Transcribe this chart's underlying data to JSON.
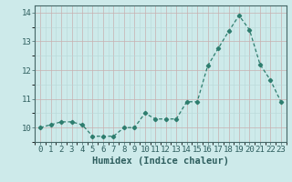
{
  "x": [
    0,
    1,
    2,
    3,
    4,
    5,
    6,
    7,
    8,
    9,
    10,
    11,
    12,
    13,
    14,
    15,
    16,
    17,
    18,
    19,
    20,
    21,
    22,
    23
  ],
  "y": [
    10.0,
    10.1,
    10.2,
    10.2,
    10.1,
    9.7,
    9.7,
    9.7,
    10.0,
    10.0,
    10.5,
    10.3,
    10.3,
    10.3,
    10.9,
    10.9,
    12.15,
    12.75,
    13.35,
    13.9,
    13.4,
    12.2,
    11.65,
    10.9
  ],
  "xlabel": "Humidex (Indice chaleur)",
  "ylim": [
    9.5,
    14.25
  ],
  "xlim": [
    -0.5,
    23.5
  ],
  "yticks": [
    10,
    11,
    12,
    13,
    14
  ],
  "xticks": [
    0,
    1,
    2,
    3,
    4,
    5,
    6,
    7,
    8,
    9,
    10,
    11,
    12,
    13,
    14,
    15,
    16,
    17,
    18,
    19,
    20,
    21,
    22,
    23
  ],
  "line_color": "#2e7d6e",
  "marker_color": "#2e7d6e",
  "bg_color": "#cdeaea",
  "grid_color_major": "#c8b0b0",
  "grid_color_minor": "#b8d8d8",
  "xlabel_fontsize": 7.5,
  "tick_fontsize": 6.5
}
